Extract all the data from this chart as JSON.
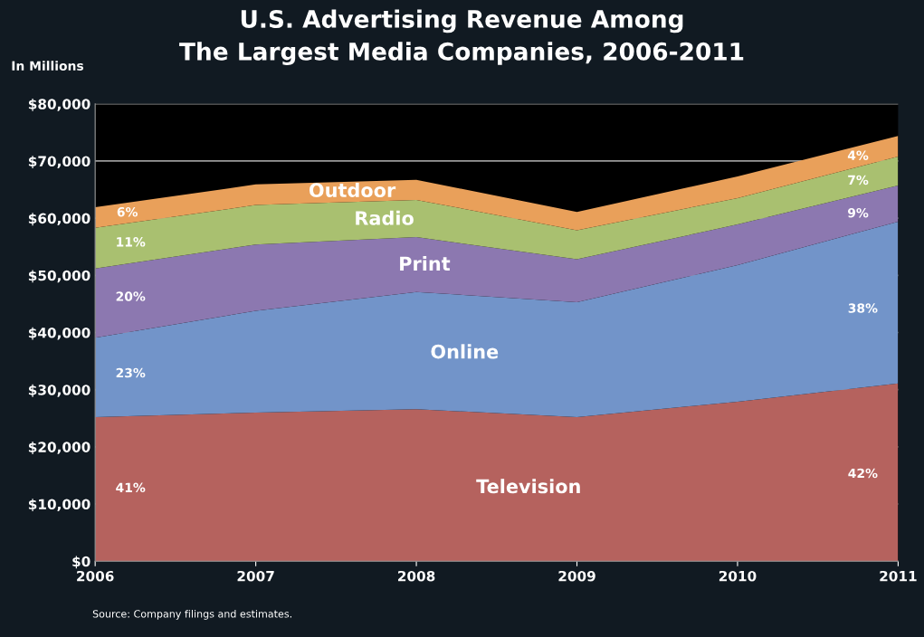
{
  "chart_data": {
    "type": "area",
    "stacked": true,
    "title": "U.S. Advertising Revenue Among\nThe Largest Media Companies, 2006-2011",
    "ylabel": "In Millions",
    "x": [
      2006,
      2007,
      2008,
      2009,
      2010,
      2011
    ],
    "xlim": [
      2006,
      2011
    ],
    "xticks": [
      2006,
      2007,
      2008,
      2009,
      2010,
      2011
    ],
    "ylim": [
      0,
      80000
    ],
    "yticks": [
      {
        "value": 0,
        "label": "$0"
      },
      {
        "value": 10000,
        "label": "$10,000"
      },
      {
        "value": 20000,
        "label": "$20,000"
      },
      {
        "value": 30000,
        "label": "$30,000"
      },
      {
        "value": 40000,
        "label": "$40,000"
      },
      {
        "value": 50000,
        "label": "$50,000"
      },
      {
        "value": 60000,
        "label": "$60,000"
      },
      {
        "value": 70000,
        "label": "$70,000"
      },
      {
        "value": 80000,
        "label": "$80,000"
      }
    ],
    "grid": "y",
    "legend": false,
    "series": [
      {
        "name": "Television",
        "color": "#b5625e",
        "values": [
          25200,
          26000,
          26600,
          25200,
          27900,
          31100
        ]
      },
      {
        "name": "Online",
        "color": "#7294c9",
        "values": [
          13900,
          17800,
          20500,
          20100,
          23900,
          28300
        ]
      },
      {
        "name": "Print",
        "color": "#8c78b0",
        "values": [
          12100,
          11600,
          9600,
          7500,
          7100,
          6300
        ]
      },
      {
        "name": "Radio",
        "color": "#a9c070",
        "values": [
          7100,
          6900,
          6500,
          5100,
          4600,
          5100
        ]
      },
      {
        "name": "Outdoor",
        "color": "#e9a05a",
        "values": [
          3600,
          3600,
          3500,
          3200,
          3800,
          3600
        ]
      }
    ],
    "annotations": [
      "41%",
      "23%",
      "20%",
      "11%",
      "6%",
      "42%",
      "38%",
      "9%",
      "7%",
      "4%",
      "Source: Company filings and estimates."
    ]
  }
}
